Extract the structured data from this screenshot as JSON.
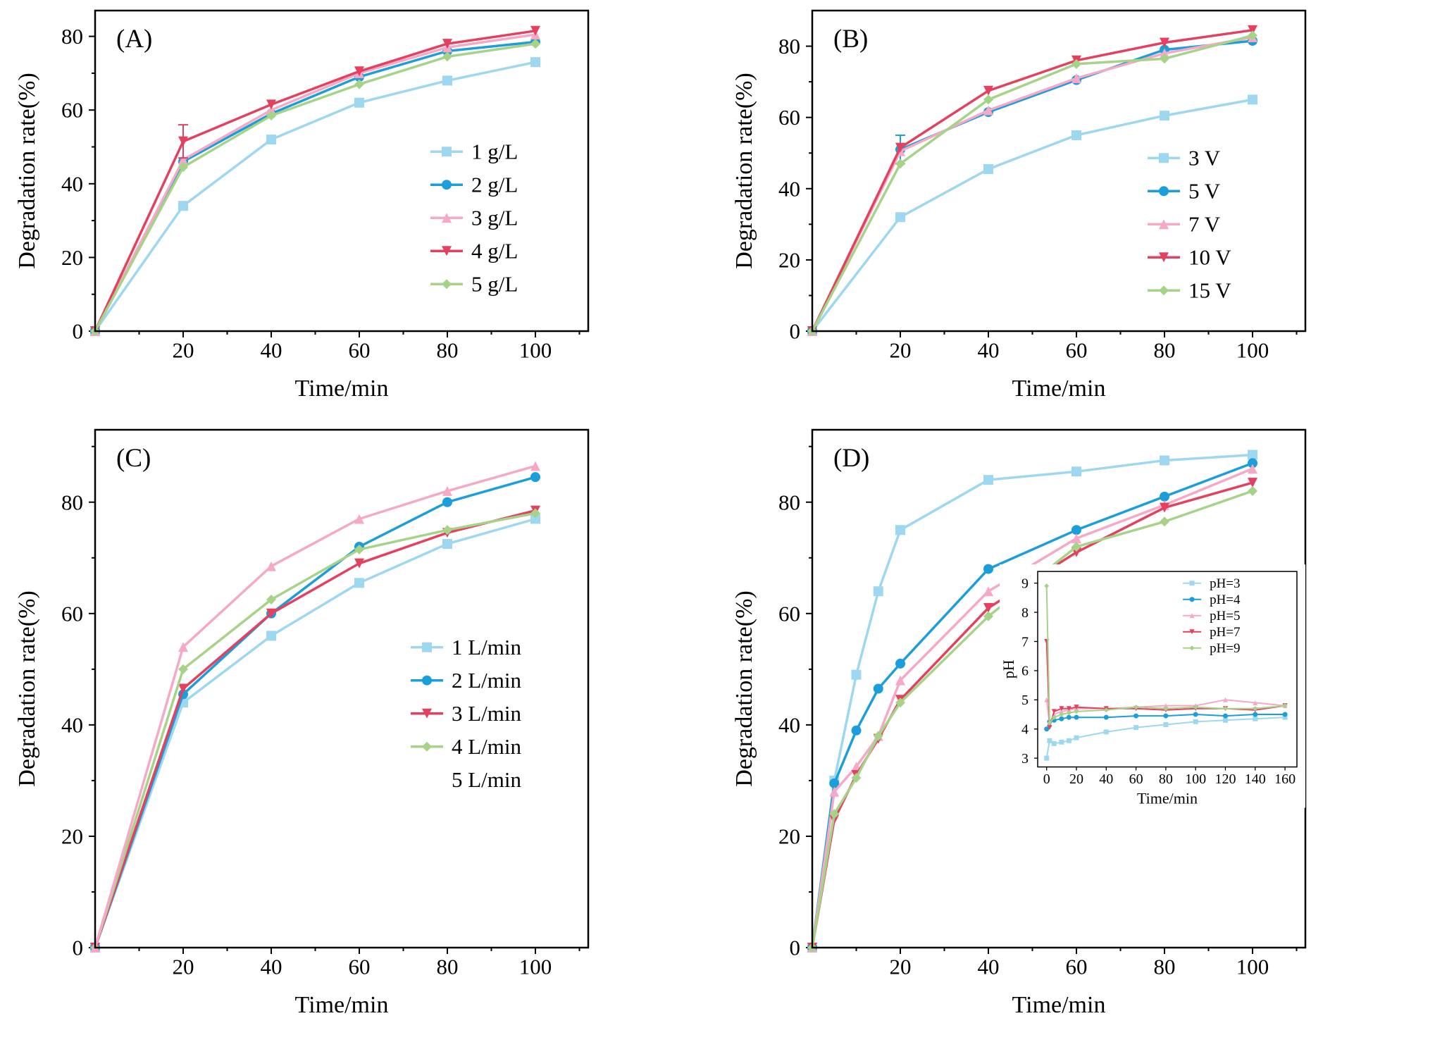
{
  "colors": {
    "lightblue": "#9ed7f0",
    "blue": "#1b9ed9",
    "pink": "#f5a9c6",
    "red": "#e4405f",
    "green": "#a6d388",
    "axis": "#000000"
  },
  "chart_data": [
    {
      "id": "A",
      "panel_label": "(A)",
      "type": "line",
      "xlabel": "Time/min",
      "ylabel": "Degradation rate(%)",
      "x": [
        0,
        20,
        40,
        60,
        80,
        100
      ],
      "xlim": [
        0,
        112
      ],
      "ylim": [
        0,
        87
      ],
      "xticks": [
        20,
        40,
        60,
        80,
        100
      ],
      "yticks": [
        0,
        20,
        40,
        60,
        80
      ],
      "legend": {
        "x": 0.68,
        "y": 0.44
      },
      "series": [
        {
          "name": "1 g/L",
          "color": "lightblue",
          "marker": "square",
          "values": [
            0,
            34,
            52,
            62,
            68,
            73
          ]
        },
        {
          "name": "2 g/L",
          "color": "blue",
          "marker": "circle",
          "values": [
            0,
            46,
            59,
            69,
            76,
            78.5
          ]
        },
        {
          "name": "3 g/L",
          "color": "pink",
          "marker": "triangle-up",
          "values": [
            0,
            46.5,
            60,
            70,
            77,
            80.5
          ]
        },
        {
          "name": "4 g/L",
          "color": "red",
          "marker": "triangle-down",
          "values": [
            0,
            51.5,
            61.5,
            70.5,
            78,
            81.5
          ],
          "err": [
            null,
            4.5,
            null,
            null,
            null,
            null
          ]
        },
        {
          "name": "5 g/L",
          "color": "green",
          "marker": "diamond",
          "values": [
            0,
            44.5,
            58.5,
            67,
            74.5,
            78
          ]
        }
      ]
    },
    {
      "id": "B",
      "panel_label": "(B)",
      "type": "line",
      "xlabel": "Time/min",
      "ylabel": "Degradation rate(%)",
      "x": [
        0,
        20,
        40,
        60,
        80,
        100
      ],
      "xlim": [
        0,
        112
      ],
      "ylim": [
        0,
        90
      ],
      "xticks": [
        20,
        40,
        60,
        80,
        100
      ],
      "yticks": [
        0,
        20,
        40,
        60,
        80
      ],
      "legend": {
        "x": 0.68,
        "y": 0.46
      },
      "series": [
        {
          "name": "3 V",
          "color": "lightblue",
          "marker": "square",
          "values": [
            0,
            32,
            45.5,
            55,
            60.5,
            65
          ]
        },
        {
          "name": "5 V",
          "color": "blue",
          "marker": "circle",
          "values": [
            0,
            51,
            61.5,
            70.5,
            79,
            81.5
          ],
          "err": [
            null,
            4,
            null,
            null,
            null,
            null
          ]
        },
        {
          "name": "7 V",
          "color": "pink",
          "marker": "triangle-up",
          "values": [
            0,
            50.5,
            62,
            71,
            78,
            82.5
          ]
        },
        {
          "name": "10 V",
          "color": "red",
          "marker": "triangle-down",
          "values": [
            0,
            51.5,
            67.5,
            76,
            81,
            84.5
          ]
        },
        {
          "name": "15 V",
          "color": "green",
          "marker": "diamond",
          "values": [
            0,
            47,
            65,
            75,
            76.5,
            83
          ]
        }
      ]
    },
    {
      "id": "C",
      "panel_label": "(C)",
      "type": "line",
      "xlabel": "Time/min",
      "ylabel": "Degradation rate(%)",
      "x": [
        0,
        20,
        40,
        60,
        80,
        100
      ],
      "xlim": [
        0,
        112
      ],
      "ylim": [
        0,
        93
      ],
      "xticks": [
        20,
        40,
        60,
        80,
        100
      ],
      "yticks": [
        0,
        20,
        40,
        60,
        80
      ],
      "legend": {
        "x": 0.64,
        "y": 0.42
      },
      "series": [
        {
          "name": "1 L/min",
          "color": "lightblue",
          "marker": "square",
          "values": [
            0,
            44,
            56,
            65.5,
            72.5,
            77
          ]
        },
        {
          "name": "2 L/min",
          "color": "blue",
          "marker": "circle",
          "values": [
            0,
            45.5,
            60,
            72,
            80,
            84.5
          ]
        },
        {
          "name": "3 L/min",
          "color": "red",
          "marker": "triangle-down",
          "values": [
            0,
            46.5,
            60,
            69,
            74.5,
            78.5
          ]
        },
        {
          "name": "4 L/min",
          "color": "green",
          "marker": "diamond",
          "values": [
            0,
            50,
            62.5,
            71.5,
            75,
            78
          ]
        },
        {
          "name": "5 L/min",
          "color": "pink",
          "marker": "triangle-up",
          "values": [
            0,
            54,
            68.5,
            77,
            82,
            86.5
          ],
          "legend_marker": false
        }
      ]
    },
    {
      "id": "D",
      "panel_label": "(D)",
      "type": "line",
      "xlabel": "Time/min",
      "ylabel": "Degradation rate(%)",
      "x": [
        0,
        5,
        10,
        15,
        20,
        40,
        60,
        80,
        100
      ],
      "xlim": [
        0,
        112
      ],
      "ylim": [
        0,
        93
      ],
      "xticks": [
        20,
        40,
        60,
        80,
        100
      ],
      "yticks": [
        0,
        20,
        40,
        60,
        80
      ],
      "legend": null,
      "series": [
        {
          "name": "pH=3",
          "color": "lightblue",
          "marker": "square",
          "values": [
            0,
            30,
            49,
            64,
            75,
            84,
            85.5,
            87.5,
            88.5
          ]
        },
        {
          "name": "pH=4",
          "color": "blue",
          "marker": "circle",
          "values": [
            0,
            29.5,
            39,
            46.5,
            51,
            68,
            75,
            81,
            87
          ]
        },
        {
          "name": "pH=5",
          "color": "pink",
          "marker": "triangle-up",
          "values": [
            0,
            28,
            32.5,
            38,
            48,
            64,
            73.5,
            79.5,
            86
          ]
        },
        {
          "name": "pH=7",
          "color": "red",
          "marker": "triangle-down",
          "values": [
            0,
            23,
            31,
            37.5,
            44.5,
            61,
            71,
            79,
            83.5
          ]
        },
        {
          "name": "pH=9",
          "color": "green",
          "marker": "diamond",
          "values": [
            0,
            24,
            30.5,
            38,
            44,
            59.5,
            72,
            76.5,
            82
          ]
        }
      ],
      "inset": {
        "id": "D-inset",
        "type": "line",
        "xlabel": "Time/min",
        "ylabel": "pH",
        "x": [
          0,
          2,
          5,
          10,
          15,
          20,
          40,
          60,
          80,
          100,
          120,
          140,
          160
        ],
        "xlim": [
          -6,
          168
        ],
        "ylim": [
          2.7,
          9.4
        ],
        "xticks": [
          0,
          20,
          40,
          60,
          80,
          100,
          120,
          140,
          160
        ],
        "yticks": [
          3,
          4,
          5,
          6,
          7,
          8,
          9
        ],
        "legend": {
          "x": 0.56,
          "y": 0.06
        },
        "series": [
          {
            "name": "pH=3",
            "color": "lightblue",
            "marker": "square",
            "values": [
              3.0,
              3.6,
              3.5,
              3.55,
              3.6,
              3.7,
              3.9,
              4.05,
              4.15,
              4.25,
              4.3,
              4.35,
              4.4
            ]
          },
          {
            "name": "pH=4",
            "color": "blue",
            "marker": "circle",
            "values": [
              4.0,
              4.25,
              4.3,
              4.35,
              4.4,
              4.4,
              4.4,
              4.45,
              4.45,
              4.5,
              4.45,
              4.5,
              4.5
            ]
          },
          {
            "name": "pH=5",
            "color": "pink",
            "marker": "triangle-up",
            "values": [
              5.0,
              4.15,
              4.5,
              4.6,
              4.65,
              4.7,
              4.7,
              4.75,
              4.8,
              4.8,
              5.0,
              4.9,
              4.8
            ]
          },
          {
            "name": "pH=7",
            "color": "red",
            "marker": "triangle-down",
            "values": [
              7.0,
              4.05,
              4.6,
              4.7,
              4.7,
              4.75,
              4.7,
              4.7,
              4.65,
              4.7,
              4.7,
              4.65,
              4.8
            ]
          },
          {
            "name": "pH=9",
            "color": "green",
            "marker": "diamond",
            "values": [
              8.9,
              4.2,
              4.4,
              4.5,
              4.55,
              4.6,
              4.65,
              4.75,
              4.7,
              4.75,
              4.7,
              4.7,
              4.8
            ]
          }
        ]
      }
    }
  ]
}
